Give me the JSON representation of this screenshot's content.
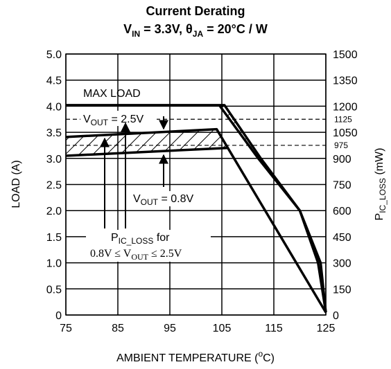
{
  "chart_data": {
    "type": "line",
    "title": "Current Derating",
    "subtitle": [
      "V",
      "IN",
      " = 3.3V, θ",
      "JA",
      " = 20°C / W"
    ],
    "x_label": [
      "AMBIENT TEMPERATURE (",
      "o",
      "C)"
    ],
    "y_label": "LOAD (A)",
    "y2_label": [
      "P",
      "IC_LOSS",
      " (mW)"
    ],
    "xlim": [
      75,
      125
    ],
    "xticks": [
      75,
      85,
      95,
      105,
      115,
      125
    ],
    "ylim": [
      0,
      5
    ],
    "yticks": [
      0,
      0.5,
      {
        "value": 1,
        "label": "1.0"
      },
      1.5,
      {
        "value": 2,
        "label": "2.0"
      },
      2.5,
      {
        "value": 3,
        "label": "3.0"
      },
      3.5,
      {
        "value": 4,
        "label": "4.0"
      },
      4.5,
      {
        "value": 5,
        "label": "5.0"
      }
    ],
    "y2lim": [
      0,
      1500
    ],
    "y2ticks": [
      0,
      150,
      300,
      450,
      600,
      750,
      900,
      975,
      1050,
      1125,
      1200,
      1350,
      1500
    ],
    "grid": true,
    "color": "#000000",
    "series": [
      {
        "x": [
          75,
          105.5,
          112.5,
          120,
          124,
          125
        ],
        "values": [
          4.02,
          4.02,
          3.0,
          2.0,
          1.0,
          0.05
        ]
      },
      {
        "x": [
          104.5,
          112,
          120,
          123.5,
          125
        ],
        "values": [
          4.02,
          3.0,
          2.0,
          1.0,
          0.05
        ]
      },
      {
        "x": [
          75,
          104,
          125
        ],
        "values": [
          3.41,
          3.56,
          0.05
        ]
      },
      {
        "x": [
          75,
          106
        ],
        "values": [
          3.05,
          3.2
        ]
      }
    ],
    "annotations": {
      "max_load": "MAX LOAD",
      "vout_high": [
        "V",
        "OUT",
        " = 2.5V"
      ],
      "vout_low": [
        "V",
        "OUT",
        " = 0.8V"
      ],
      "ploss_1": [
        "P",
        "IC_LOSS",
        " for"
      ],
      "ploss_2": [
        "0.8V ≤ V",
        "OUT",
        " ≤ 2.5V"
      ]
    }
  }
}
